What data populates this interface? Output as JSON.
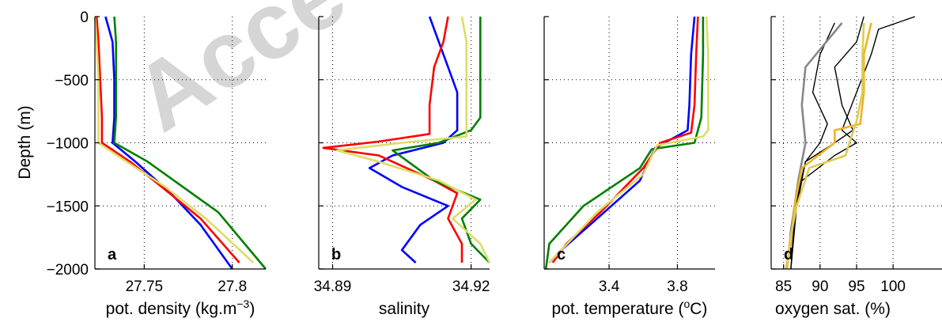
{
  "watermark": "Acce",
  "y_axis_label": "Depth (m)",
  "y_ticks": [
    0,
    -500,
    -1000,
    -1500,
    -2000
  ],
  "chart_data": [
    {
      "type": "line",
      "panel_label": "a",
      "xlabel_parts": [
        "pot. density (kg.m",
        "−3",
        ")"
      ],
      "xlim": [
        27.722,
        27.819
      ],
      "ylim": [
        -2000,
        0
      ],
      "xticks": [
        27.75,
        27.8
      ],
      "grid": true,
      "series": [
        {
          "color": "#0000ff",
          "points": [
            [
              27.728,
              0
            ],
            [
              27.732,
              -200
            ],
            [
              27.733,
              -500
            ],
            [
              27.733,
              -800
            ],
            [
              27.732,
              -1000
            ],
            [
              27.745,
              -1150
            ],
            [
              27.765,
              -1400
            ],
            [
              27.782,
              -1650
            ],
            [
              27.8,
              -2000
            ]
          ]
        },
        {
          "color": "#ff0000",
          "points": [
            [
              27.723,
              0
            ],
            [
              27.724,
              -200
            ],
            [
              27.725,
              -500
            ],
            [
              27.726,
              -800
            ],
            [
              27.726,
              -1000
            ],
            [
              27.742,
              -1150
            ],
            [
              27.76,
              -1350
            ],
            [
              27.782,
              -1600
            ],
            [
              27.804,
              -1950
            ]
          ]
        },
        {
          "color": "#008000",
          "points": [
            [
              27.733,
              0
            ],
            [
              27.734,
              -200
            ],
            [
              27.734,
              -500
            ],
            [
              27.734,
              -800
            ],
            [
              27.733,
              -1000
            ],
            [
              27.752,
              -1150
            ],
            [
              27.772,
              -1350
            ],
            [
              27.792,
              -1550
            ],
            [
              27.819,
              -2000
            ]
          ]
        },
        {
          "color": "#dddd66",
          "points": [
            [
              27.722,
              0
            ],
            [
              27.723,
              -200
            ],
            [
              27.724,
              -500
            ],
            [
              27.724,
              -800
            ],
            [
              27.724,
              -1000
            ],
            [
              27.74,
              -1150
            ],
            [
              27.762,
              -1350
            ],
            [
              27.785,
              -1600
            ],
            [
              27.812,
              -1950
            ]
          ]
        }
      ]
    },
    {
      "type": "line",
      "panel_label": "b",
      "xlabel_parts": [
        "salinity"
      ],
      "xlim": [
        34.887,
        34.924
      ],
      "ylim": [
        -2000,
        0
      ],
      "xticks": [
        34.89,
        34.92
      ],
      "grid": true,
      "series": [
        {
          "color": "#0000ff",
          "points": [
            [
              34.911,
              0
            ],
            [
              34.913,
              -200
            ],
            [
              34.915,
              -400
            ],
            [
              34.917,
              -600
            ],
            [
              34.917,
              -900
            ],
            [
              34.914,
              -1000
            ],
            [
              34.903,
              -1100
            ],
            [
              34.898,
              -1200
            ],
            [
              34.905,
              -1350
            ],
            [
              34.915,
              -1500
            ],
            [
              34.909,
              -1650
            ],
            [
              34.905,
              -1850
            ],
            [
              34.908,
              -1950
            ]
          ]
        },
        {
          "color": "#ff0000",
          "points": [
            [
              34.915,
              0
            ],
            [
              34.914,
              -200
            ],
            [
              34.912,
              -400
            ],
            [
              34.911,
              -700
            ],
            [
              34.911,
              -930
            ],
            [
              34.9,
              -990
            ],
            [
              34.888,
              -1040
            ],
            [
              34.9,
              -1100
            ],
            [
              34.912,
              -1300
            ],
            [
              34.917,
              -1400
            ],
            [
              34.915,
              -1600
            ],
            [
              34.918,
              -1800
            ],
            [
              34.918,
              -1950
            ]
          ]
        },
        {
          "color": "#008000",
          "points": [
            [
              34.922,
              0
            ],
            [
              34.922,
              -200
            ],
            [
              34.922,
              -400
            ],
            [
              34.922,
              -800
            ],
            [
              34.92,
              -900
            ],
            [
              34.913,
              -1000
            ],
            [
              34.903,
              -1060
            ],
            [
              34.912,
              -1300
            ],
            [
              34.922,
              -1450
            ],
            [
              34.918,
              -1600
            ],
            [
              34.92,
              -1800
            ],
            [
              34.924,
              -1950
            ]
          ]
        },
        {
          "color": "#dddd66",
          "points": [
            [
              34.918,
              0
            ],
            [
              34.919,
              -200
            ],
            [
              34.919,
              -400
            ],
            [
              34.919,
              -700
            ],
            [
              34.919,
              -950
            ],
            [
              34.905,
              -1000
            ],
            [
              34.891,
              -1060
            ],
            [
              34.9,
              -1150
            ],
            [
              34.913,
              -1300
            ],
            [
              34.921,
              -1450
            ],
            [
              34.916,
              -1600
            ],
            [
              34.922,
              -1800
            ],
            [
              34.924,
              -1950
            ]
          ]
        }
      ]
    },
    {
      "type": "line",
      "panel_label": "c",
      "xlabel_parts": [
        "pot. temperature (",
        "o",
        "C)"
      ],
      "xlim": [
        3.02,
        4.02
      ],
      "ylim": [
        -2000,
        0
      ],
      "xticks": [
        3.4,
        3.8
      ],
      "grid": true,
      "series": [
        {
          "color": "#0000ff",
          "points": [
            [
              3.9,
              0
            ],
            [
              3.88,
              -300
            ],
            [
              3.87,
              -700
            ],
            [
              3.86,
              -900
            ],
            [
              3.67,
              -1040
            ],
            [
              3.58,
              -1300
            ],
            [
              3.33,
              -1600
            ],
            [
              3.12,
              -1850
            ],
            [
              3.05,
              -1950
            ]
          ]
        },
        {
          "color": "#ff0000",
          "points": [
            [
              3.92,
              0
            ],
            [
              3.91,
              -300
            ],
            [
              3.9,
              -700
            ],
            [
              3.88,
              -920
            ],
            [
              3.7,
              -1000
            ],
            [
              3.6,
              -1200
            ],
            [
              3.35,
              -1550
            ],
            [
              3.15,
              -1800
            ],
            [
              3.07,
              -1950
            ]
          ]
        },
        {
          "color": "#008000",
          "points": [
            [
              3.95,
              0
            ],
            [
              3.95,
              -300
            ],
            [
              3.94,
              -800
            ],
            [
              3.9,
              -1000
            ],
            [
              3.65,
              -1050
            ],
            [
              3.58,
              -1200
            ],
            [
              3.25,
              -1500
            ],
            [
              3.05,
              -1800
            ],
            [
              3.03,
              -2000
            ]
          ]
        },
        {
          "color": "#dddd66",
          "points": [
            [
              3.97,
              0
            ],
            [
              3.98,
              -300
            ],
            [
              3.98,
              -900
            ],
            [
              3.95,
              -950
            ],
            [
              3.68,
              -1020
            ],
            [
              3.6,
              -1250
            ],
            [
              3.33,
              -1550
            ],
            [
              3.12,
              -1850
            ],
            [
              3.05,
              -1950
            ]
          ]
        }
      ]
    },
    {
      "type": "line",
      "panel_label": "d",
      "xlabel_parts": [
        "oxygen sat. (%)"
      ],
      "xlim": [
        83.3,
        106.7
      ],
      "ylim": [
        -2000,
        0
      ],
      "xticks": [
        85,
        90,
        95,
        100
      ],
      "grid": true,
      "series": [
        {
          "color": "#000000",
          "points": [
            [
              103,
              0
            ],
            [
              98,
              -100
            ],
            [
              97,
              -300
            ],
            [
              95,
              -600
            ],
            [
              93,
              -900
            ],
            [
              95,
              -1000
            ],
            [
              92,
              -1100
            ],
            [
              87.5,
              -1300
            ],
            [
              86.5,
              -1600
            ],
            [
              86,
              -2000
            ]
          ]
        },
        {
          "color": "#000000",
          "points": [
            [
              96,
              0
            ],
            [
              95,
              -200
            ],
            [
              92,
              -400
            ],
            [
              93,
              -700
            ],
            [
              94.5,
              -900
            ],
            [
              92,
              -1000
            ],
            [
              88,
              -1150
            ],
            [
              87,
              -1400
            ],
            [
              86,
              -1800
            ],
            [
              85.5,
              -2000
            ]
          ]
        },
        {
          "color": "#000000",
          "points": [
            [
              92,
              -50
            ],
            [
              90,
              -300
            ],
            [
              89,
              -600
            ],
            [
              91,
              -850
            ],
            [
              90,
              -1000
            ],
            [
              88,
              -1150
            ],
            [
              86.8,
              -1500
            ],
            [
              86,
              -2000
            ]
          ]
        },
        {
          "color": "#888888",
          "points": [
            [
              93,
              -50
            ],
            [
              88,
              -400
            ],
            [
              87.5,
              -700
            ],
            [
              88,
              -1000
            ],
            [
              87,
              -1300
            ],
            [
              86,
              -1700
            ],
            [
              85.5,
              -2000
            ]
          ]
        },
        {
          "color": "#eeb422",
          "points": [
            [
              97,
              -50
            ],
            [
              96,
              -300
            ],
            [
              96,
              -600
            ],
            [
              95.5,
              -850
            ],
            [
              92,
              -900
            ],
            [
              92,
              -1000
            ],
            [
              87.5,
              -1200
            ],
            [
              86.5,
              -1500
            ],
            [
              86,
              -1800
            ],
            [
              85.3,
              -2000
            ]
          ]
        },
        {
          "color": "#ddcc55",
          "points": [
            [
              96,
              -50
            ],
            [
              95.8,
              -300
            ],
            [
              95.8,
              -600
            ],
            [
              95,
              -830
            ],
            [
              94,
              -1000
            ],
            [
              93.5,
              -1100
            ],
            [
              88.5,
              -1200
            ],
            [
              86.8,
              -1500
            ],
            [
              85.8,
              -1800
            ],
            [
              85.5,
              -2000
            ]
          ]
        }
      ]
    }
  ]
}
